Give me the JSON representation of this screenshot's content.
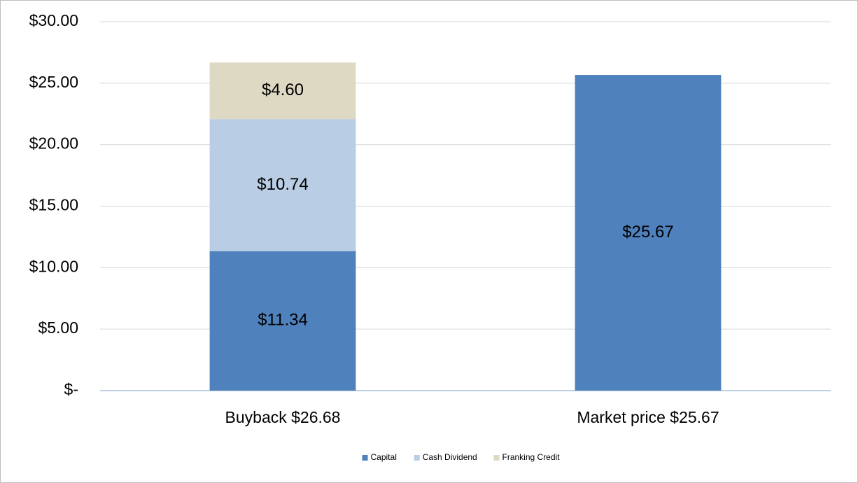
{
  "chart_data": {
    "type": "stacked_bar",
    "categories": [
      "Buyback $26.68",
      "Market price $25.67"
    ],
    "series": [
      {
        "name": "Capital",
        "color": "#4f81bd",
        "values": [
          11.34,
          25.67
        ],
        "value_labels": [
          "$11.34",
          "$25.67"
        ]
      },
      {
        "name": "Cash Dividend",
        "color": "#b9cde5",
        "values": [
          10.74,
          null
        ],
        "value_labels": [
          "$10.74",
          null
        ]
      },
      {
        "name": "Franking Credit",
        "color": "#ddd9c3",
        "values": [
          4.6,
          null
        ],
        "value_labels": [
          "$4.60",
          null
        ]
      }
    ],
    "ylim": [
      0,
      30
    ],
    "yticks": [
      {
        "value": 0,
        "label": "$-"
      },
      {
        "value": 5,
        "label": "$5.00"
      },
      {
        "value": 10,
        "label": "$10.00"
      },
      {
        "value": 15,
        "label": "$15.00"
      },
      {
        "value": 20,
        "label": "$20.00"
      },
      {
        "value": 25,
        "label": "$25.00"
      },
      {
        "value": 30,
        "label": "$30.00"
      }
    ],
    "grid": true,
    "legend": "bottom"
  }
}
